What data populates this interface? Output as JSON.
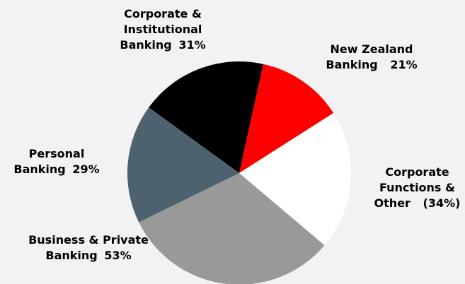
{
  "chart_data": {
    "type": "pie",
    "categories": [
      "Corporate & Institutional Banking",
      "New Zealand Banking",
      "Corporate Functions & Other",
      "Business & Private Banking",
      "Personal Banking"
    ],
    "values": [
      31,
      21,
      -34,
      53,
      29
    ],
    "value_labels": [
      "31%",
      "21%",
      "(34%)",
      "53%",
      "29%"
    ],
    "colors": [
      "#000000",
      "#ff0000",
      "#ffffff",
      "#999999",
      "#4d626e"
    ]
  }
}
